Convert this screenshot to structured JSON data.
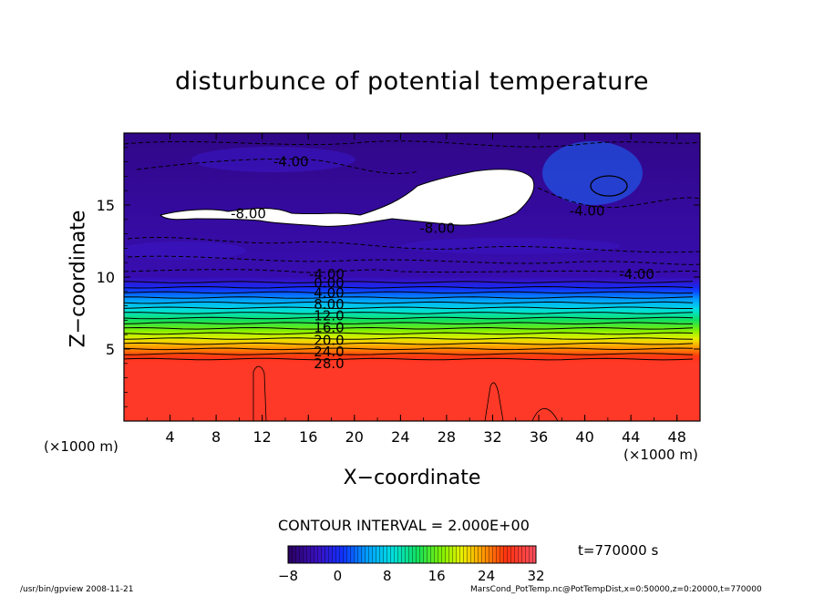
{
  "chart_data": {
    "type": "heatmap",
    "title": "disturbunce of potential temperature",
    "xlabel": "X−coordinate",
    "ylabel": "Z−coordinate",
    "x_unit_left": "(×1000 m)",
    "x_unit_right": "(×1000 m)",
    "xlim": [
      0,
      50
    ],
    "ylim": [
      0,
      20
    ],
    "xticks": [
      4,
      8,
      12,
      16,
      20,
      24,
      28,
      32,
      36,
      40,
      44,
      48
    ],
    "yticks": [
      5,
      10,
      15
    ],
    "colorbar": {
      "min": -8,
      "max": 32,
      "ticks": [
        -8,
        0,
        8,
        16,
        24,
        32
      ],
      "tick_labels": [
        "−8",
        "0",
        "8",
        "16",
        "24",
        "32"
      ]
    },
    "contour_interval_label": "CONTOUR INTERVAL = 2.000E+00",
    "time_label": "t=770000 s",
    "footer_left": "/usr/bin/gpview   2008-11-21",
    "footer_right": "MarsCond_PotTemp.nc@PotTempDist,x=0:50000,z=0:20000,t=770000",
    "profile_z": [
      0,
      4.0,
      4.3,
      10.0,
      20
    ],
    "profile_value": [
      28.6,
      28.6,
      28.0,
      -4.0,
      -6.0
    ],
    "contour_labels": [
      {
        "text": "28.0",
        "x": 17.8,
        "z": 4.0
      },
      {
        "text": "24.0",
        "x": 17.8,
        "z": 4.8
      },
      {
        "text": "20.0",
        "x": 17.8,
        "z": 5.6
      },
      {
        "text": "16.0",
        "x": 17.8,
        "z": 6.5
      },
      {
        "text": "12.0",
        "x": 17.8,
        "z": 7.3
      },
      {
        "text": "8.00",
        "x": 17.8,
        "z": 8.1
      },
      {
        "text": "4.00",
        "x": 17.8,
        "z": 8.9
      },
      {
        "text": "0.00",
        "x": 17.8,
        "z": 9.6
      },
      {
        "text": "-4.00",
        "x": 17.6,
        "z": 10.2
      },
      {
        "text": "-4.00",
        "x": 44.5,
        "z": 10.2
      },
      {
        "text": "-4.00",
        "x": 14.5,
        "z": 18.0
      },
      {
        "text": "-4.00",
        "x": 40.2,
        "z": 14.6
      },
      {
        "text": "-8.00",
        "x": 10.8,
        "z": 14.4
      },
      {
        "text": "-8.00",
        "x": 27.2,
        "z": 13.4
      }
    ],
    "white_region_label": "below −8 (white, unshaded)"
  }
}
